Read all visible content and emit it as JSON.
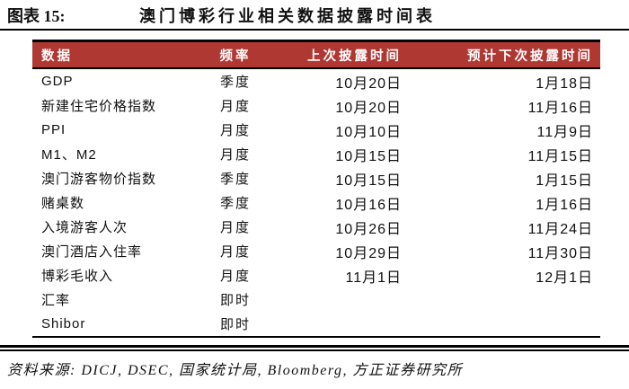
{
  "figure": {
    "label": "图表 15:",
    "title": "澳门博彩行业相关数据披露时间表"
  },
  "table": {
    "columns": [
      "数据",
      "频率",
      "上次披露时间",
      "预计下次披露时间"
    ],
    "rows": [
      {
        "name": "GDP",
        "freq": "季度",
        "last": "10月20日",
        "next": "1月18日"
      },
      {
        "name": "新建住宅价格指数",
        "freq": "月度",
        "last": "10月20日",
        "next": "11月16日"
      },
      {
        "name": "PPI",
        "freq": "月度",
        "last": "10月10日",
        "next": "11月9日"
      },
      {
        "name": "M1、M2",
        "freq": "月度",
        "last": "10月15日",
        "next": "11月15日"
      },
      {
        "name": "澳门游客物价指数",
        "freq": "季度",
        "last": "10月15日",
        "next": "1月15日"
      },
      {
        "name": "赌桌数",
        "freq": "季度",
        "last": "10月16日",
        "next": "1月16日"
      },
      {
        "name": "入境游客人次",
        "freq": "月度",
        "last": "10月26日",
        "next": "11月24日"
      },
      {
        "name": "澳门酒店入住率",
        "freq": "月度",
        "last": "10月29日",
        "next": "11月30日"
      },
      {
        "name": "博彩毛收入",
        "freq": "月度",
        "last": "11月1日",
        "next": "12月1日"
      },
      {
        "name": "汇率",
        "freq": "即时",
        "last": "",
        "next": ""
      },
      {
        "name": "Shibor",
        "freq": "即时",
        "last": "",
        "next": ""
      }
    ]
  },
  "source": "资料来源: DICJ, DSEC, 国家统计局, Bloomberg, 方正证券研究所",
  "colors": {
    "header_bg": "#B03833",
    "header_text": "#FFFFFF",
    "rule": "#000000"
  }
}
